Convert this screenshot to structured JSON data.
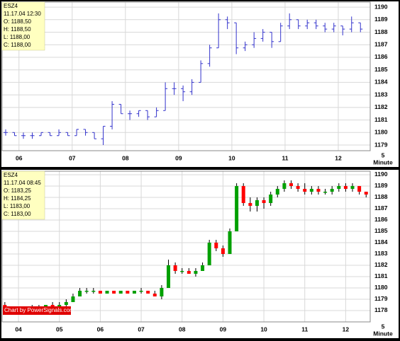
{
  "chart_data": [
    {
      "type": "ohlc",
      "color": "#3333cc",
      "grid": true,
      "info": [
        "ESZ4",
        "11.17.04 12:30",
        "O: 1188,50",
        "H: 1188,50",
        "L: 1188,00",
        "C: 1188,00"
      ],
      "xlabel": [
        "5",
        "Minute"
      ],
      "xlim": [
        341,
        756
      ],
      "xticks": [
        {
          "value": 360,
          "label": "06"
        },
        {
          "value": 420,
          "label": "07"
        },
        {
          "value": 480,
          "label": "08"
        },
        {
          "value": 540,
          "label": "09"
        },
        {
          "value": 600,
          "label": "10"
        },
        {
          "value": 660,
          "label": "11"
        },
        {
          "value": 720,
          "label": "12"
        }
      ],
      "ylim": [
        1178.55,
        1190.4
      ],
      "yticks": [
        1179,
        1180,
        1181,
        1182,
        1183,
        1184,
        1185,
        1186,
        1187,
        1188,
        1189,
        1190
      ],
      "x": [
        345,
        355,
        365,
        375,
        385,
        395,
        405,
        415,
        425,
        435,
        445,
        455,
        465,
        475,
        485,
        495,
        505,
        515,
        525,
        535,
        545,
        555,
        565,
        575,
        585,
        595,
        605,
        615,
        625,
        635,
        645,
        655,
        665,
        675,
        685,
        695,
        705,
        715,
        725,
        735,
        745
      ],
      "open": [
        1180,
        1180,
        1179.75,
        1179.75,
        1179.75,
        1180,
        1179.75,
        1180,
        1179.75,
        1180.25,
        1180,
        1179.5,
        1180.5,
        1182.25,
        1181.5,
        1181.5,
        1181.75,
        1181.25,
        1181.75,
        1183.5,
        1183.5,
        1183.25,
        1184,
        1185.5,
        1186.75,
        1189,
        1188.75,
        1186.75,
        1187,
        1187.5,
        1188,
        1187.25,
        1188.5,
        1189,
        1188.5,
        1188.75,
        1188.5,
        1188.25,
        1188.5,
        1188.25,
        1188.75
      ],
      "high": [
        1180.25,
        1180,
        1180,
        1180,
        1180,
        1180,
        1180.25,
        1180,
        1180.25,
        1180.25,
        1180,
        1180.5,
        1182.5,
        1182.25,
        1181.75,
        1181.75,
        1181.75,
        1182,
        1184,
        1184,
        1183.75,
        1184.25,
        1185.75,
        1187,
        1189.5,
        1189.25,
        1188.75,
        1187.25,
        1188,
        1188.25,
        1188,
        1188.75,
        1189.5,
        1189,
        1189,
        1189,
        1188.75,
        1188.75,
        1188.5,
        1189.25,
        1188.75
      ],
      "low": [
        1179.75,
        1179.75,
        1179.5,
        1179.5,
        1179.75,
        1179.75,
        1179.75,
        1179.75,
        1179.75,
        1179.75,
        1179.5,
        1179,
        1180.25,
        1181.5,
        1181,
        1181.25,
        1181,
        1181.25,
        1181.75,
        1183,
        1182.5,
        1183,
        1184,
        1185.25,
        1186.75,
        1188.25,
        1186.25,
        1186.5,
        1186.75,
        1187.25,
        1186.75,
        1187.25,
        1188.25,
        1188.25,
        1188.25,
        1188.25,
        1188,
        1188,
        1187.75,
        1188,
        1188
      ],
      "close": [
        1180,
        1179.75,
        1179.75,
        1179.75,
        1180,
        1179.75,
        1180,
        1179.75,
        1180.25,
        1180,
        1179.5,
        1180.5,
        1182.25,
        1181.5,
        1181.5,
        1181.75,
        1181.25,
        1181.75,
        1183.5,
        1183.5,
        1183.25,
        1184,
        1185.5,
        1186.75,
        1189,
        1188.75,
        1186.75,
        1187,
        1187.5,
        1188,
        1187.25,
        1188.5,
        1189,
        1188.5,
        1188.75,
        1188.5,
        1188.25,
        1188.5,
        1188.25,
        1188.75,
        1188.25
      ]
    },
    {
      "type": "candlestick",
      "up_color": "#00a000",
      "down_color": "#ff0000",
      "wick_color": "#000000",
      "grid": true,
      "info": [
        "ESZ4",
        "11.17.04 08:45",
        "O: 1183,25",
        "H: 1184,25",
        "L: 1183,00",
        "C: 1183,00"
      ],
      "credit": "Chart by PowerSignals.com",
      "xlabel": [
        "5",
        "Minute"
      ],
      "xlim": [
        216,
        756
      ],
      "xticks": [
        {
          "value": 240,
          "label": "04"
        },
        {
          "value": 300,
          "label": "05"
        },
        {
          "value": 360,
          "label": "06"
        },
        {
          "value": 420,
          "label": "07"
        },
        {
          "value": 480,
          "label": "08"
        },
        {
          "value": 540,
          "label": "09"
        },
        {
          "value": 600,
          "label": "10"
        },
        {
          "value": 660,
          "label": "11"
        },
        {
          "value": 720,
          "label": "12"
        }
      ],
      "ylim": [
        1177,
        1190.31
      ],
      "yticks": [
        1178,
        1179,
        1180,
        1181,
        1182,
        1183,
        1184,
        1185,
        1186,
        1187,
        1188,
        1189,
        1190
      ],
      "x": [
        220,
        230,
        240,
        250,
        260,
        270,
        280,
        290,
        300,
        310,
        320,
        330,
        340,
        350,
        360,
        370,
        380,
        390,
        400,
        410,
        420,
        430,
        440,
        450,
        460,
        470,
        480,
        490,
        500,
        510,
        520,
        530,
        540,
        550,
        560,
        570,
        580,
        590,
        600,
        610,
        620,
        630,
        640,
        650,
        660,
        670,
        680,
        690,
        700,
        710,
        720,
        730,
        740,
        750
      ],
      "open": [
        1178.5,
        1178,
        1178,
        1178,
        1178,
        1178.25,
        1178.25,
        1178.5,
        1178.25,
        1178.5,
        1178.75,
        1179.25,
        1179.75,
        1179.75,
        1179.75,
        1179.5,
        1179.75,
        1179.5,
        1179.75,
        1179.5,
        1179.75,
        1179.75,
        1179.5,
        1179.25,
        1180,
        1182,
        1181.5,
        1181.5,
        1181.25,
        1181.5,
        1182,
        1184,
        1183.5,
        1183,
        1185,
        1189,
        1187.5,
        1187.25,
        1187.75,
        1187.5,
        1188.25,
        1188.75,
        1189.25,
        1189,
        1188.75,
        1188.5,
        1188.75,
        1188.5,
        1188.5,
        1188.75,
        1189,
        1188.75,
        1189,
        1188.5
      ],
      "high": [
        1178.75,
        1178.25,
        1178.25,
        1178.25,
        1178.5,
        1178.5,
        1178.5,
        1178.75,
        1178.75,
        1179,
        1179.5,
        1180,
        1180,
        1180,
        1179.75,
        1179.75,
        1179.75,
        1179.75,
        1179.75,
        1179.75,
        1180,
        1179.75,
        1179.75,
        1180.25,
        1182.5,
        1182.25,
        1181.75,
        1181.75,
        1181.75,
        1182.25,
        1184.25,
        1184.25,
        1183.75,
        1185.25,
        1189.25,
        1189.25,
        1188,
        1188,
        1188,
        1188.5,
        1189,
        1189.5,
        1189.5,
        1189.25,
        1189.25,
        1189,
        1189,
        1188.75,
        1189,
        1189.25,
        1189.25,
        1189.25,
        1189,
        1188.5
      ],
      "low": [
        1177.75,
        1177.75,
        1177.75,
        1177.75,
        1177.75,
        1178,
        1178,
        1178,
        1178,
        1178.25,
        1178.75,
        1179.25,
        1179.5,
        1179.5,
        1179.5,
        1179.5,
        1179.5,
        1179.5,
        1179.5,
        1179.5,
        1179.5,
        1179.5,
        1179.25,
        1179,
        1180,
        1181.25,
        1181.25,
        1181.25,
        1181,
        1181.5,
        1182,
        1183.25,
        1182.75,
        1183,
        1185,
        1187.25,
        1186.75,
        1186.75,
        1187,
        1187.25,
        1188,
        1188.5,
        1188.75,
        1188.5,
        1188.25,
        1188.25,
        1188.25,
        1188.25,
        1188.25,
        1188.5,
        1188.5,
        1188.5,
        1188.25,
        1188
      ],
      "close": [
        1178,
        1178,
        1178,
        1178,
        1178.25,
        1178.25,
        1178.5,
        1178.25,
        1178.5,
        1178.75,
        1179.25,
        1179.75,
        1179.75,
        1179.75,
        1179.5,
        1179.75,
        1179.5,
        1179.75,
        1179.5,
        1179.75,
        1179.75,
        1179.5,
        1179.25,
        1180,
        1182,
        1181.5,
        1181.5,
        1181.25,
        1181.5,
        1182,
        1184,
        1183.5,
        1183,
        1185,
        1189,
        1187.5,
        1187.25,
        1187.75,
        1187.5,
        1188.25,
        1188.75,
        1189.25,
        1189,
        1188.75,
        1188.5,
        1188.75,
        1188.5,
        1188.5,
        1188.75,
        1189,
        1188.75,
        1189,
        1188.5,
        1188.25
      ]
    }
  ]
}
